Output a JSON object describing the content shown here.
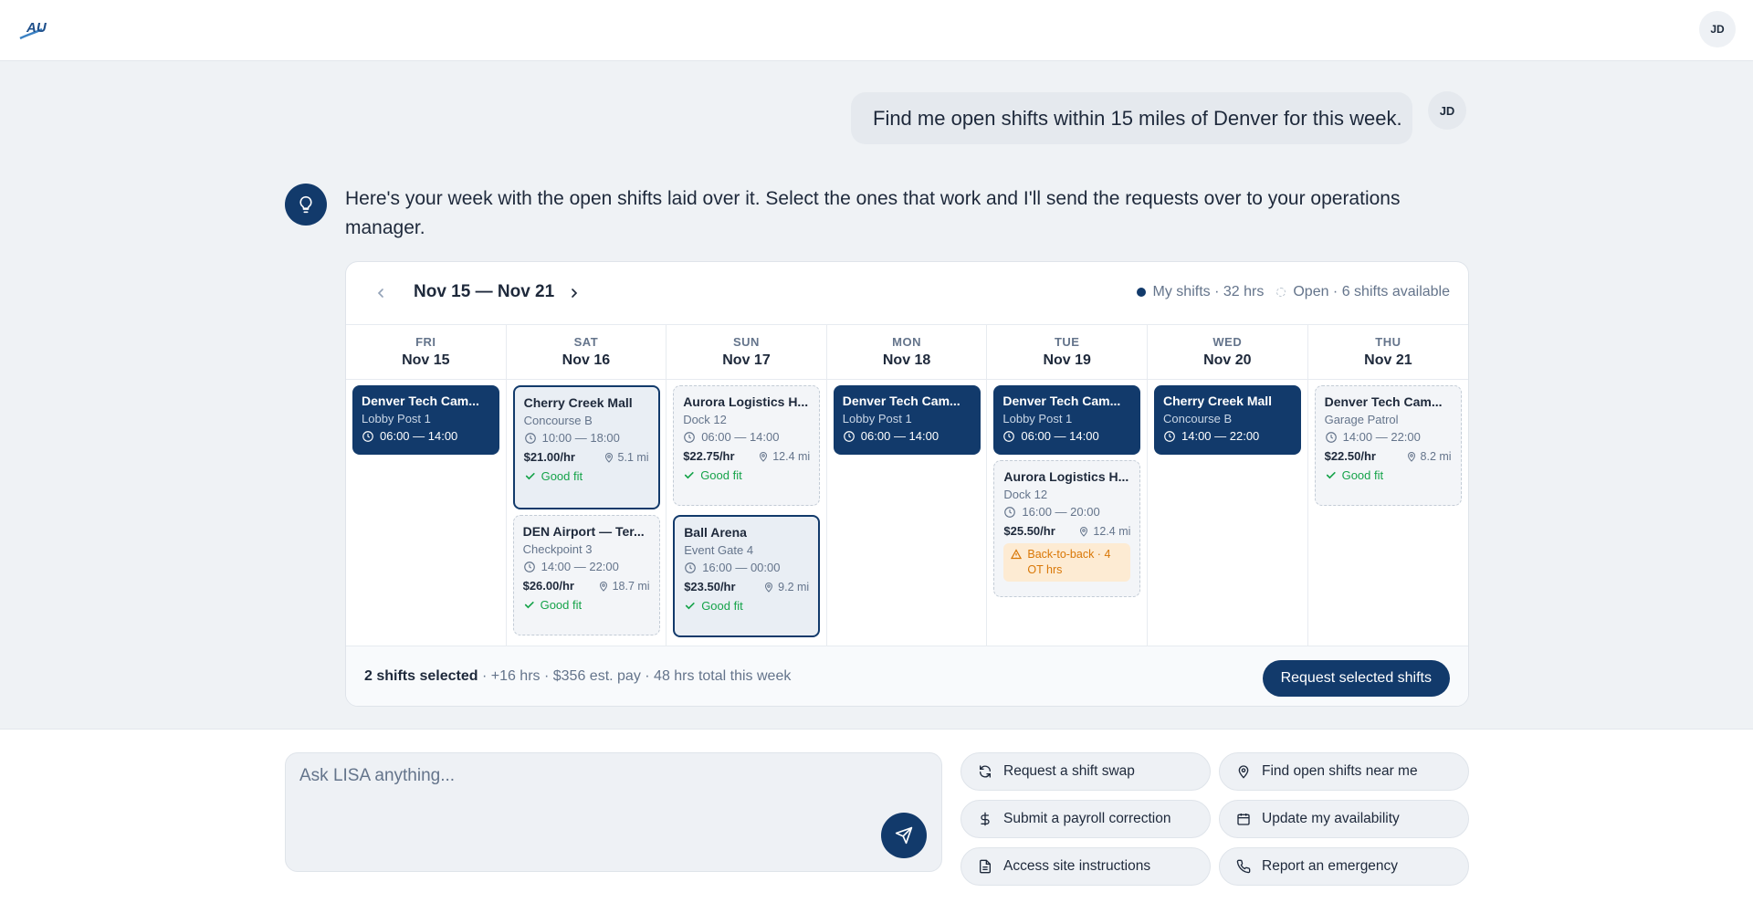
{
  "user": {
    "initials": "JD"
  },
  "chat": {
    "user_message": "Find me open shifts within 15 miles of Denver for this week.",
    "assistant_message": "Here's your week with the open shifts laid over it. Select the ones that work and I'll send the requests over to your operations manager."
  },
  "calendar": {
    "range": "Nov 15 — Nov 21",
    "legend_mine": "My shifts · 32 hrs",
    "legend_open": "Open · 6 shifts available",
    "days": [
      {
        "dow": "FRI",
        "date": "Nov 15"
      },
      {
        "dow": "SAT",
        "date": "Nov 16"
      },
      {
        "dow": "SUN",
        "date": "Nov 17"
      },
      {
        "dow": "MON",
        "date": "Nov 18"
      },
      {
        "dow": "TUE",
        "date": "Nov 19"
      },
      {
        "dow": "WED",
        "date": "Nov 20"
      },
      {
        "dow": "THU",
        "date": "Nov 21"
      }
    ],
    "shifts": {
      "fri_1": {
        "title": "Denver Tech Cam...",
        "location": "Lobby Post 1",
        "time": "06:00 — 14:00"
      },
      "sat_1": {
        "title": "Cherry Creek Mall",
        "location": "Concourse B",
        "time": "10:00 — 18:00",
        "pay": "$21.00/hr",
        "distance": "5.1 mi",
        "fit": "Good fit"
      },
      "sat_2": {
        "title": "DEN Airport — Ter...",
        "location": "Checkpoint 3",
        "time": "14:00 — 22:00",
        "pay": "$26.00/hr",
        "distance": "18.7 mi",
        "fit": "Good fit"
      },
      "sun_1": {
        "title": "Aurora Logistics H...",
        "location": "Dock 12",
        "time": "06:00 — 14:00",
        "pay": "$22.75/hr",
        "distance": "12.4 mi",
        "fit": "Good fit"
      },
      "sun_2": {
        "title": "Ball Arena",
        "location": "Event Gate 4",
        "time": "16:00 — 00:00",
        "pay": "$23.50/hr",
        "distance": "9.2 mi",
        "fit": "Good fit"
      },
      "mon_1": {
        "title": "Denver Tech Cam...",
        "location": "Lobby Post 1",
        "time": "06:00 — 14:00"
      },
      "tue_1": {
        "title": "Denver Tech Cam...",
        "location": "Lobby Post 1",
        "time": "06:00 — 14:00"
      },
      "tue_2": {
        "title": "Aurora Logistics H...",
        "location": "Dock 12",
        "time": "16:00 — 20:00",
        "pay": "$25.50/hr",
        "distance": "12.4 mi",
        "warning": "Back-to-back · 4 OT hrs"
      },
      "wed_1": {
        "title": "Cherry Creek Mall",
        "location": "Concourse B",
        "time": "14:00 — 22:00"
      },
      "thu_1": {
        "title": "Denver Tech Cam...",
        "location": "Garage Patrol",
        "time": "14:00 — 22:00",
        "pay": "$22.50/hr",
        "distance": "8.2 mi",
        "fit": "Good fit"
      }
    },
    "summary_bold": "2 shifts selected",
    "summary_rest": " · +16 hrs · $356 est. pay · 48 hrs total this week",
    "request_button": "Request selected shifts"
  },
  "composer": {
    "placeholder": "Ask LISA anything...",
    "chips": {
      "swap": {
        "label": "Request a shift swap",
        "icon": "refresh-icon"
      },
      "find": {
        "label": "Find open shifts near me",
        "icon": "map-pin-icon"
      },
      "payroll": {
        "label": "Submit a payroll correction",
        "icon": "dollar-icon"
      },
      "availability": {
        "label": "Update my availability",
        "icon": "calendar-icon"
      },
      "site": {
        "label": "Access site instructions",
        "icon": "file-icon"
      },
      "emergency": {
        "label": "Report an emergency",
        "icon": "phone-icon"
      }
    }
  },
  "colors": {
    "brand": "#123a6b",
    "good_fit": "#16a34a",
    "warning": "#d97706"
  }
}
